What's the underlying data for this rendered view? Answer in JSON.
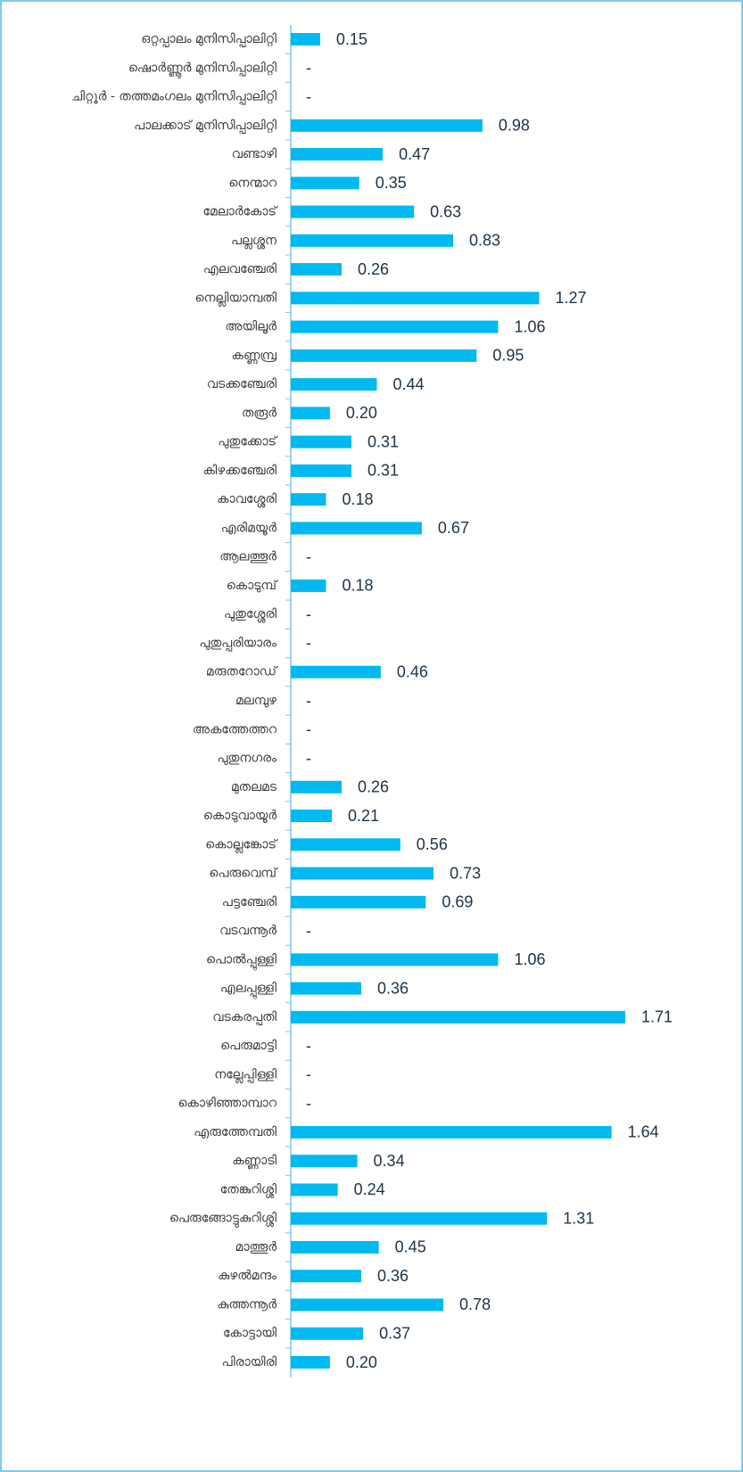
{
  "chart_data": {
    "type": "barh",
    "categories": [
      "ഒറ്റപ്പാലം മുനിസിപ്പാലിറ്റി",
      "ഷൊർണ്ണൂർ മുനിസിപ്പാലിറ്റി",
      "ചിറ്റൂർ - തത്തമംഗലം മുനിസിപ്പാലിറ്റി",
      "പാലക്കാട് മുനിസിപ്പാലിറ്റി",
      "വണ്ടാഴി",
      "നെന്മാറ",
      "മേലാർകോട്",
      "പല്ലശ്ശന",
      "എലവഞ്ചേരി",
      "നെല്ലിയാമ്പതി",
      "അയിലൂർ",
      "കണ്ണമ്പ്ര",
      "വടക്കഞ്ചേരി",
      "തരൂർ",
      "പുതുക്കോട്",
      "കിഴക്കഞ്ചേരി",
      "കാവശ്ശേരി",
      "എരിമയൂർ",
      "ആലത്തൂർ",
      "കൊടുമ്പ്",
      "പുതുശ്ശേരി",
      "പുതുപ്പരിയാരം",
      "മരുതറോഡ്",
      "മലമ്പുഴ",
      "അകത്തേത്തറ",
      "പുതുനഗരം",
      "മുതലമട",
      "കൊടുവായൂർ",
      "കൊല്ലങ്കോട്",
      "പെരുവെമ്പ്",
      "പട്ടഞ്ചേരി",
      "വടവന്നൂർ",
      "പൊൽപ്പുള്ളി",
      "എലപ്പുള്ളി",
      "വടകരപ്പതി",
      "പെരുമാട്ടി",
      "നല്ലേപ്പിള്ളി",
      "കൊഴിഞ്ഞാമ്പാറ",
      "എരുത്തേമ്പതി",
      "കണ്ണാടി",
      "തേങ്കുറിശ്ശി",
      "പെരുങ്ങോട്ടുകുറിശ്ശി",
      "മാത്തൂർ",
      "കുഴൽമന്ദം",
      "കുത്തന്നൂർ",
      "കോട്ടായി",
      "പിരായിരി"
    ],
    "values": [
      0.15,
      null,
      null,
      0.98,
      0.47,
      0.35,
      0.63,
      0.83,
      0.26,
      1.27,
      1.06,
      0.95,
      0.44,
      0.2,
      0.31,
      0.31,
      0.18,
      0.67,
      null,
      0.18,
      null,
      null,
      0.46,
      null,
      null,
      null,
      0.26,
      0.21,
      0.56,
      0.73,
      0.69,
      null,
      1.06,
      0.36,
      1.71,
      null,
      null,
      null,
      1.64,
      0.34,
      0.24,
      1.31,
      0.45,
      0.36,
      0.78,
      0.37,
      0.2
    ],
    "value_labels": [
      "0.15",
      "-",
      "-",
      "0.98",
      "0.47",
      "0.35",
      "0.63",
      "0.83",
      "0.26",
      "1.27",
      "1.06",
      "0.95",
      "0.44",
      "0.20",
      "0.31",
      "0.31",
      "0.18",
      "0.67",
      "-",
      "0.18",
      "-",
      "-",
      "0.46",
      "-",
      "-",
      "-",
      "0.26",
      "0.21",
      "0.56",
      "0.73",
      "0.69",
      "-",
      "1.06",
      "0.36",
      "1.71",
      "-",
      "-",
      "-",
      "1.64",
      "0.34",
      "0.24",
      "1.31",
      "0.45",
      "0.36",
      "0.78",
      "0.37",
      "0.20"
    ],
    "color": "#00b9f1"
  }
}
